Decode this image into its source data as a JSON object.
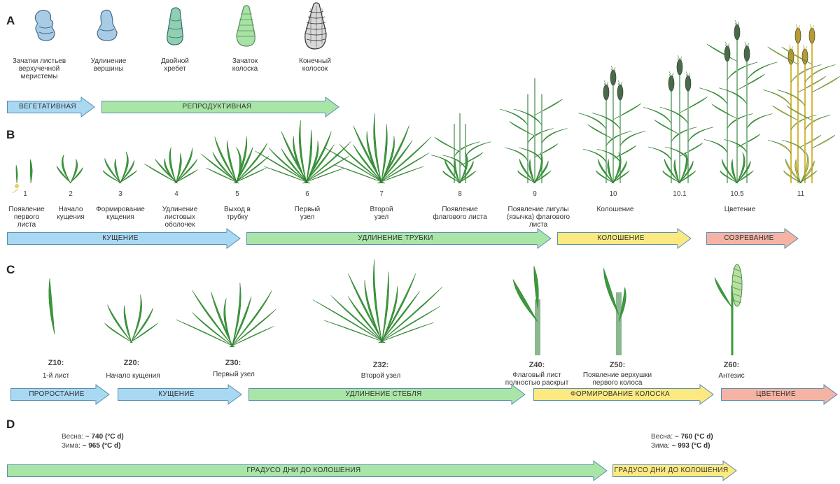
{
  "section_a": {
    "letter": "A",
    "stages": [
      {
        "label": "Зачатки листьев\nверхучечной\nмеристемы",
        "icon": "leaf-primordia-meristem-icon"
      },
      {
        "label": "Удлинение\nвершины",
        "icon": "apex-elongation-icon"
      },
      {
        "label": "Двойной\nхребет",
        "icon": "double-ridge-icon"
      },
      {
        "label": "Зачаток\nколоска",
        "icon": "spikelet-primordium-icon"
      },
      {
        "label": "Конечный\nколосок",
        "icon": "terminal-spikelet-icon"
      }
    ],
    "arrows": [
      {
        "label": "ВЕГЕТАТИВНАЯ",
        "color": "#a9d8f2"
      },
      {
        "label": "РЕПРОДУКТИВНАЯ",
        "color": "#a9e5a6"
      }
    ]
  },
  "section_b": {
    "letter": "B",
    "stages": [
      {
        "num": "1",
        "label": "Появление\nпервого\nлиста"
      },
      {
        "num": "2",
        "label": "Начало\nкущения"
      },
      {
        "num": "3",
        "label": "Формирование\nкущения"
      },
      {
        "num": "4",
        "label": "Удлинение\nлистовых\nоболочек"
      },
      {
        "num": "5",
        "label": "Выход в\nтрубку"
      },
      {
        "num": "6",
        "label": "Первый\nузел"
      },
      {
        "num": "7",
        "label": "Второй\nузел"
      },
      {
        "num": "8",
        "label": "Появление\nфлагового листа"
      },
      {
        "num": "9",
        "label": "Появление лигулы\n(язычка) флагового\nлиста"
      },
      {
        "num": "10",
        "label": "Колошение"
      },
      {
        "num": "10.1",
        "label": ""
      },
      {
        "num": "10.5",
        "label": "Цветение"
      },
      {
        "num": "11",
        "label": ""
      }
    ],
    "arrows": [
      {
        "label": "КУЩЕНИЕ",
        "color": "#a9d8f2"
      },
      {
        "label": "УДЛИНЕНИЕ ТРУБКИ",
        "color": "#a9e5a6"
      },
      {
        "label": "КОЛОШЕНИЕ",
        "color": "#fde982"
      },
      {
        "label": "СОЗРЕВАНИЕ",
        "color": "#f5b3a3"
      }
    ]
  },
  "section_c": {
    "letter": "C",
    "stages": [
      {
        "code": "Z10:",
        "label": "1-й лист"
      },
      {
        "code": "Z20:",
        "label": "Начало кущения"
      },
      {
        "code": "Z30:",
        "label": "Первый узел"
      },
      {
        "code": "Z32:",
        "label": "Второй узел"
      },
      {
        "code": "Z40:",
        "label": "Флаговый лист\nполностью раскрыт"
      },
      {
        "code": "Z50:",
        "label": "Появление верхушки\nпервого колоса"
      },
      {
        "code": "Z60:",
        "label": "Антезис"
      }
    ],
    "arrows": [
      {
        "label": "ПРОРОСТАНИЕ",
        "color": "#a9d8f2"
      },
      {
        "label": "КУЩЕНИЕ",
        "color": "#a9d8f2"
      },
      {
        "label": "УДЛИНЕНИЕ СТЕБЛЯ",
        "color": "#a9e5a6"
      },
      {
        "label": "ФОРМИРОВАНИЕ КОЛОСКА",
        "color": "#fde982"
      },
      {
        "label": "ЦВЕТЕНИЕ",
        "color": "#f5b3a3"
      }
    ]
  },
  "section_d": {
    "letter": "D",
    "left": {
      "spring_label": "Весна:",
      "spring_value": "~ 740 (°C d)",
      "winter_label": "Зима:",
      "winter_value": "~ 965 (°C d)"
    },
    "right": {
      "spring_label": "Весна:",
      "spring_value": "~ 760 (°C d)",
      "winter_label": "Зима:",
      "winter_value": "~ 993 (°C d)"
    },
    "arrows": [
      {
        "label": "ГРАДУСО ДНИ ДО КОЛОШЕНИЯ",
        "color": "#a9e5a6"
      },
      {
        "label": "ГРАДУСО ДНИ ДО КОЛОШЕНИЯ",
        "color": "#fde982"
      }
    ]
  },
  "colors": {
    "leaf_green": "#3a9a3a",
    "leaf_dark": "#2a7a2a",
    "stem_green": "#8ab890",
    "mature_gold": "#d8b840",
    "spike_dark": "#4a6a4a",
    "arrow_outline": "#5a8fb0"
  }
}
